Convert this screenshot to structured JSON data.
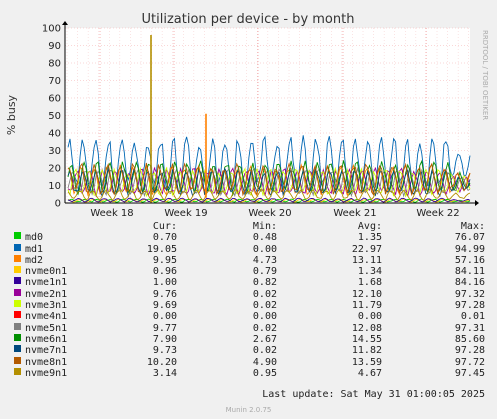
{
  "chart_data": {
    "type": "line",
    "title": "Utilization per device - by month",
    "ylabel": "% busy",
    "ylim": [
      0,
      100
    ],
    "yticks": [
      0,
      10,
      20,
      30,
      40,
      50,
      60,
      70,
      80,
      90,
      100
    ],
    "xticks": [
      "Week 18",
      "Week 19",
      "Week 20",
      "Week 21",
      "Week 22"
    ],
    "grid": true,
    "columns": [
      "Cur:",
      "Min:",
      "Avg:",
      "Max:"
    ],
    "series": [
      {
        "name": "md0",
        "color": "#00cc00",
        "cur": "0.70",
        "min": "0.48",
        "avg": "1.35",
        "max": "76.07"
      },
      {
        "name": "md1",
        "color": "#0066b3",
        "cur": "19.05",
        "min": "0.00",
        "avg": "22.97",
        "max": "94.99"
      },
      {
        "name": "md2",
        "color": "#ff8000",
        "cur": "9.95",
        "min": "4.73",
        "avg": "13.11",
        "max": "57.16"
      },
      {
        "name": "nvme0n1",
        "color": "#ffcc00",
        "cur": "0.96",
        "min": "0.79",
        "avg": "1.34",
        "max": "84.11"
      },
      {
        "name": "nvme1n1",
        "color": "#330099",
        "cur": "1.00",
        "min": "0.82",
        "avg": "1.68",
        "max": "84.16"
      },
      {
        "name": "nvme2n1",
        "color": "#990099",
        "cur": "9.76",
        "min": "0.02",
        "avg": "12.10",
        "max": "97.32"
      },
      {
        "name": "nvme3n1",
        "color": "#ccff00",
        "cur": "9.69",
        "min": "0.02",
        "avg": "11.79",
        "max": "97.28"
      },
      {
        "name": "nvme4n1",
        "color": "#ff0000",
        "cur": "0.00",
        "min": "0.00",
        "avg": "0.00",
        "max": "0.01"
      },
      {
        "name": "nvme5n1",
        "color": "#808080",
        "cur": "9.77",
        "min": "0.02",
        "avg": "12.08",
        "max": "97.31"
      },
      {
        "name": "nvme6n1",
        "color": "#008f00",
        "cur": "7.90",
        "min": "2.67",
        "avg": "14.55",
        "max": "85.60"
      },
      {
        "name": "nvme7n1",
        "color": "#00487d",
        "cur": "9.73",
        "min": "0.02",
        "avg": "11.82",
        "max": "97.28"
      },
      {
        "name": "nvme8n1",
        "color": "#b35a00",
        "cur": "10.20",
        "min": "4.90",
        "avg": "13.59",
        "max": "97.72"
      },
      {
        "name": "nvme9n1",
        "color": "#b38f00",
        "cur": "3.14",
        "min": "0.95",
        "avg": "4.67",
        "max": "97.45"
      }
    ]
  },
  "vendor_text": "RRDTOOL / TOBI OETIKER",
  "last_update": "Last update: Sat May 31 01:00:05 2025",
  "munin_version": "Munin 2.0.75"
}
